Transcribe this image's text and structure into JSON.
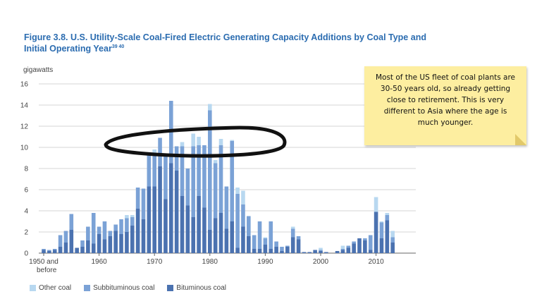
{
  "title": "Figure 3.8. U.S. Utility-Scale Coal-Fired Electric Generating Capacity Additions by Coal Type and Initial Operating Year",
  "title_sup": "39 40",
  "unit_label": "gigawatts",
  "annotation": {
    "text": "Most of the US fleet of coal plants are 30-50 years old, so already getting close to retirement. This is very different to Asia where the age is much younger."
  },
  "colors": {
    "bituminous": "#4b72b0",
    "subbituminous": "#7ba2d6",
    "other": "#b8d8f0",
    "note_bg": "#fdeea0",
    "title": "#2b6cb0"
  },
  "chart_data": {
    "type": "bar",
    "stacked": true,
    "x_label": "",
    "y_label": "gigawatts",
    "ylim": [
      0,
      16
    ],
    "yticks": [
      0,
      2,
      4,
      6,
      8,
      10,
      12,
      14,
      16
    ],
    "xticks": [
      "1950 and before",
      "1960",
      "1970",
      "1980",
      "1990",
      "2000",
      "2010"
    ],
    "grid": true,
    "legend_position": "bottom-left",
    "categories": [
      "1950 and before",
      "1951",
      "1952",
      "1953",
      "1954",
      "1955",
      "1956",
      "1957",
      "1958",
      "1959",
      "1960",
      "1961",
      "1962",
      "1963",
      "1964",
      "1965",
      "1966",
      "1967",
      "1968",
      "1969",
      "1970",
      "1971",
      "1972",
      "1973",
      "1974",
      "1975",
      "1976",
      "1977",
      "1978",
      "1979",
      "1980",
      "1981",
      "1982",
      "1983",
      "1984",
      "1985",
      "1986",
      "1987",
      "1988",
      "1989",
      "1990",
      "1991",
      "1992",
      "1993",
      "1994",
      "1995",
      "1996",
      "1997",
      "1998",
      "1999",
      "2000",
      "2001",
      "2002",
      "2003",
      "2004",
      "2005",
      "2006",
      "2007",
      "2008",
      "2009",
      "2010",
      "2011",
      "2012",
      "2013"
    ],
    "series": [
      {
        "name": "Bituminous coal",
        "values": [
          0.3,
          0.2,
          0.3,
          0.6,
          1.0,
          2.2,
          0.5,
          0.6,
          1.2,
          0.9,
          1.8,
          1.3,
          1.6,
          2.1,
          1.8,
          2.0,
          2.6,
          4.2,
          3.2,
          6.3,
          6.3,
          8.2,
          5.1,
          8.5,
          7.8,
          5.4,
          4.5,
          3.4,
          5.4,
          4.3,
          2.2,
          3.3,
          3.8,
          2.3,
          3.0,
          0.5,
          2.5,
          1.6,
          0.4,
          0.4,
          0.8,
          0.4,
          0.6,
          0.2,
          0.6,
          1.5,
          1.3,
          0.1,
          0.1,
          0.3,
          0.2,
          0.1,
          0.0,
          0.2,
          0.3,
          0.5,
          0.9,
          1.4,
          1.2,
          0.3,
          3.9,
          1.4,
          3.1,
          1.0
        ]
      },
      {
        "name": "Subbituminous coal",
        "values": [
          0.1,
          0.1,
          0.1,
          1.1,
          1.1,
          1.5,
          0.0,
          0.6,
          1.3,
          2.9,
          0.7,
          1.7,
          0.5,
          0.6,
          1.4,
          1.3,
          0.8,
          2.0,
          2.9,
          3.0,
          3.0,
          2.7,
          4.1,
          5.9,
          2.3,
          4.7,
          3.5,
          6.7,
          4.8,
          5.9,
          11.3,
          5.2,
          6.4,
          4.0,
          7.6,
          5.1,
          2.1,
          1.9,
          1.3,
          2.6,
          0.6,
          2.6,
          0.5,
          0.4,
          0.1,
          0.8,
          0.3,
          0.0,
          0.0,
          0.0,
          0.1,
          0.0,
          0.0,
          0.0,
          0.1,
          0.2,
          0.2,
          0.0,
          0.2,
          1.4,
          0.0,
          1.5,
          0.5,
          0.5
        ]
      },
      {
        "name": "Other coal",
        "values": [
          0.0,
          0.0,
          0.0,
          0.0,
          0.0,
          0.0,
          0.0,
          0.0,
          0.0,
          0.0,
          0.0,
          0.0,
          0.0,
          0.0,
          0.0,
          0.3,
          0.2,
          0.0,
          0.0,
          0.0,
          0.5,
          0.0,
          0.0,
          0.0,
          0.0,
          0.4,
          0.0,
          1.2,
          0.8,
          0.0,
          0.6,
          0.3,
          0.6,
          0.0,
          0.1,
          0.6,
          1.3,
          0.0,
          0.0,
          0.0,
          0.1,
          0.0,
          0.0,
          0.0,
          0.0,
          0.2,
          0.0,
          0.0,
          0.0,
          0.0,
          0.2,
          0.0,
          0.0,
          0.0,
          0.3,
          0.0,
          0.0,
          0.0,
          0.0,
          0.0,
          1.4,
          0.1,
          0.2,
          0.6
        ]
      }
    ]
  }
}
